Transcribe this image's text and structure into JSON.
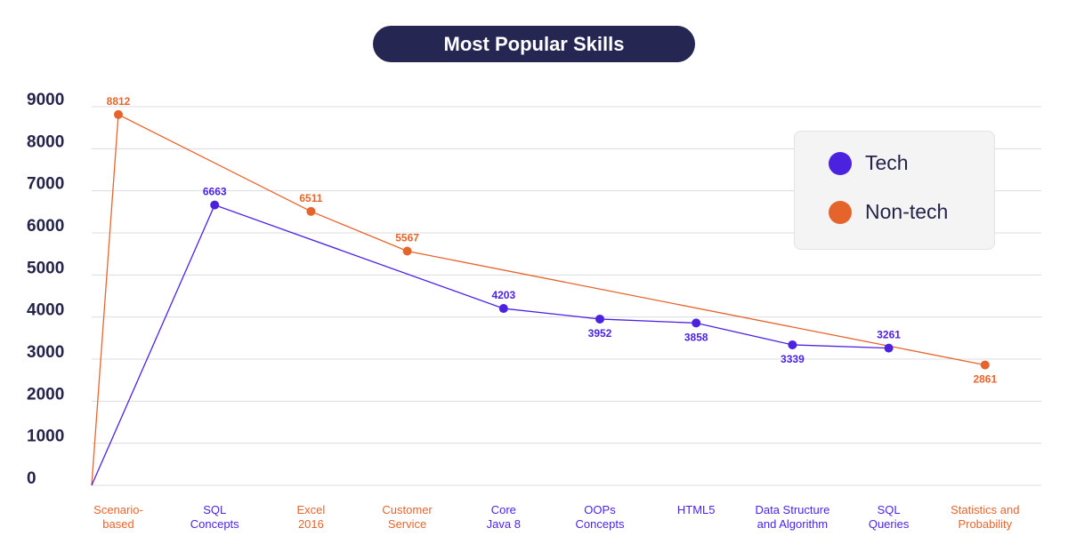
{
  "title": "Most Popular Skills",
  "colors": {
    "tech": "#4b22e0",
    "nontech": "#e4642c",
    "axis_text": "#24244a",
    "grid": "#dcdce0",
    "title_bg": "#252651"
  },
  "legend": [
    {
      "label": "Tech",
      "color": "#4b22e0"
    },
    {
      "label": "Non-tech",
      "color": "#e4642c"
    }
  ],
  "chart_data": {
    "type": "line",
    "title": "Most Popular Skills",
    "xlabel": "",
    "ylabel": "",
    "ylim": [
      0,
      9000
    ],
    "yticks": [
      "0",
      "1000",
      "2000",
      "3000",
      "4000",
      "5000",
      "6000",
      "7000",
      "8000",
      "9000"
    ],
    "grid": true,
    "legend_position": "top-right",
    "categories": [
      {
        "line1": "Scenario-",
        "line2": "based",
        "group": "nontech"
      },
      {
        "line1": "SQL",
        "line2": "Concepts",
        "group": "tech"
      },
      {
        "line1": "Excel",
        "line2": "2016",
        "group": "nontech"
      },
      {
        "line1": "Customer",
        "line2": "Service",
        "group": "nontech"
      },
      {
        "line1": "Core",
        "line2": "Java 8",
        "group": "tech"
      },
      {
        "line1": "OOPs",
        "line2": "Concepts",
        "group": "tech"
      },
      {
        "line1": "HTML5",
        "line2": "",
        "group": "tech"
      },
      {
        "line1": "Data Structure",
        "line2": "and Algorithm",
        "group": "tech"
      },
      {
        "line1": "SQL",
        "line2": "Queries",
        "group": "tech"
      },
      {
        "line1": "Statistics and",
        "line2": "Probability",
        "group": "nontech"
      }
    ],
    "series": [
      {
        "name": "Tech",
        "color": "#4b22e0",
        "origin": 0,
        "points": [
          {
            "index": 1,
            "value": 6663,
            "label_pos": "above"
          },
          {
            "index": 4,
            "value": 4203,
            "label_pos": "above"
          },
          {
            "index": 5,
            "value": 3952,
            "label_pos": "below"
          },
          {
            "index": 6,
            "value": 3858,
            "label_pos": "below"
          },
          {
            "index": 7,
            "value": 3339,
            "label_pos": "below"
          },
          {
            "index": 8,
            "value": 3261,
            "label_pos": "above"
          }
        ]
      },
      {
        "name": "Non-tech",
        "color": "#e4642c",
        "origin": 0,
        "points": [
          {
            "index": 0,
            "value": 8812,
            "label_pos": "above"
          },
          {
            "index": 2,
            "value": 6511,
            "label_pos": "above"
          },
          {
            "index": 3,
            "value": 5567,
            "label_pos": "above"
          },
          {
            "index": 9,
            "value": 2861,
            "label_pos": "below"
          }
        ]
      }
    ]
  }
}
